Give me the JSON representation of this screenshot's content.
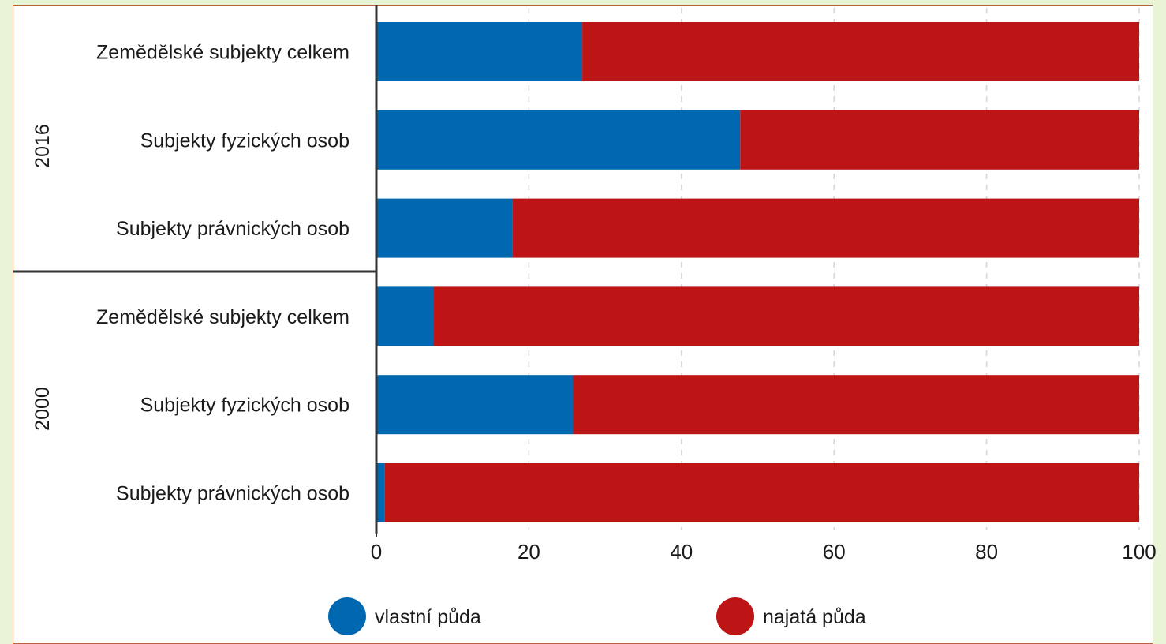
{
  "chart_data": {
    "type": "bar",
    "orientation": "horizontal",
    "stacked": true,
    "groups": [
      {
        "label": "2016",
        "categories": [
          "Zemědělské subjekty celkem",
          "Subjekty fyzických osob",
          "Subjekty právnických osob"
        ]
      },
      {
        "label": "2000",
        "categories": [
          "Zemědělské subjekty celkem",
          "Subjekty fyzických osob",
          "Subjekty právnických osob"
        ]
      }
    ],
    "series": [
      {
        "name": "vlastní půda",
        "color": "#0068b1",
        "values": [
          27,
          47.7,
          17.8,
          7.5,
          25.8,
          1.1
        ]
      },
      {
        "name": "najatá půda",
        "color": "#bd1515",
        "values": [
          73,
          52.3,
          82.2,
          92.5,
          74.2,
          98.9
        ]
      }
    ],
    "xlim": [
      0,
      100
    ],
    "xticks": [
      "0",
      "20",
      "40",
      "60",
      "80",
      "100"
    ],
    "grid": "vertical dashed",
    "legend_position": "bottom"
  }
}
